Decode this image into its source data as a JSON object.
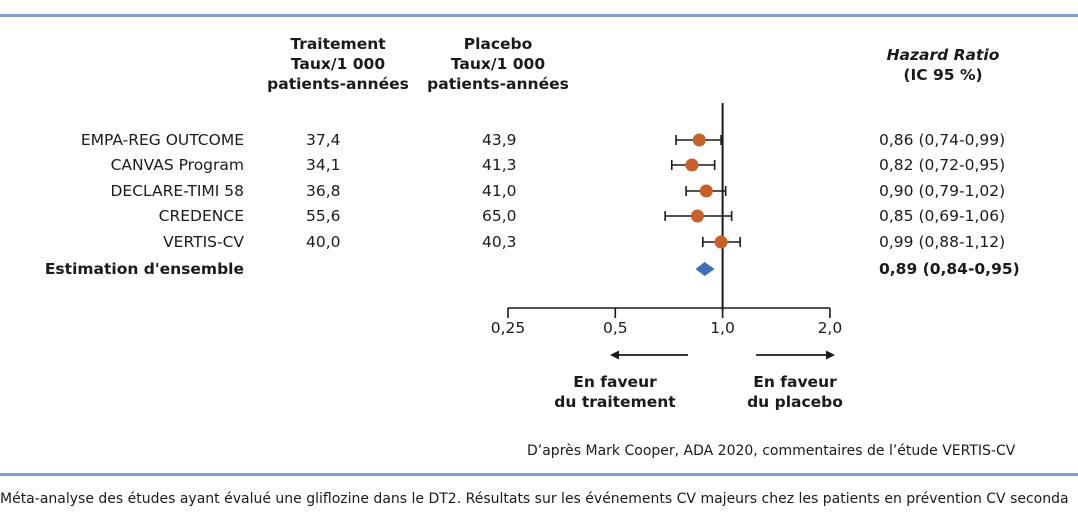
{
  "chart_data": {
    "type": "forest",
    "columns": {
      "treatment_header": "Traitement\nTaux/1 000\npatients-années",
      "placebo_header": "Placebo\nTaux/1 000\npatients-années",
      "hr_header_title": "Hazard Ratio",
      "hr_header_sub": "(IC 95 %)"
    },
    "studies": [
      {
        "name": "EMPA-REG OUTCOME",
        "treatment": "37,4",
        "placebo": "43,9",
        "hr": 0.86,
        "lo": 0.74,
        "hi": 0.99,
        "hr_text": "0,86 (0,74-0,99)"
      },
      {
        "name": "CANVAS Program",
        "treatment": "34,1",
        "placebo": "41,3",
        "hr": 0.82,
        "lo": 0.72,
        "hi": 0.95,
        "hr_text": "0,82 (0,72-0,95)"
      },
      {
        "name": "DECLARE-TIMI 58",
        "treatment": "36,8",
        "placebo": "41,0",
        "hr": 0.9,
        "lo": 0.79,
        "hi": 1.02,
        "hr_text": "0,90 (0,79-1,02)"
      },
      {
        "name": "CREDENCE",
        "treatment": "55,6",
        "placebo": "65,0",
        "hr": 0.85,
        "lo": 0.69,
        "hi": 1.06,
        "hr_text": "0,85 (0,69-1,06)"
      },
      {
        "name": "VERTIS-CV",
        "treatment": "40,0",
        "placebo": "40,3",
        "hr": 0.99,
        "lo": 0.88,
        "hi": 1.12,
        "hr_text": "0,99 (0,88-1,12)"
      }
    ],
    "overall": {
      "name": "Estimation d'ensemble",
      "hr": 0.89,
      "lo": 0.84,
      "hi": 0.95,
      "hr_text": "0,89 (0,84-0,95)"
    },
    "x_scale": "log",
    "xlim": [
      0.25,
      2.0
    ],
    "x_ticks": [
      {
        "value": 0.25,
        "label": "0,25"
      },
      {
        "value": 0.5,
        "label": "0,5"
      },
      {
        "value": 1.0,
        "label": "1,0"
      },
      {
        "value": 2.0,
        "label": "2,0"
      }
    ],
    "reference_line": 1.0,
    "favors_left": "En faveur\ndu traitement",
    "favors_right": "En faveur\ndu placebo",
    "colors": {
      "point": "#c8602a",
      "diamond": "#3d6fb4",
      "rule": "#7a9fd0",
      "line": "#1a1a1a"
    }
  },
  "source": "D’après Mark Cooper, ADA 2020, commentaires de l’étude VERTIS-CV",
  "caption": "Méta-analyse des études ayant évalué une gliflozine dans le DT2. Résultats sur les événements CV majeurs chez les patients en prévention CV seconda"
}
